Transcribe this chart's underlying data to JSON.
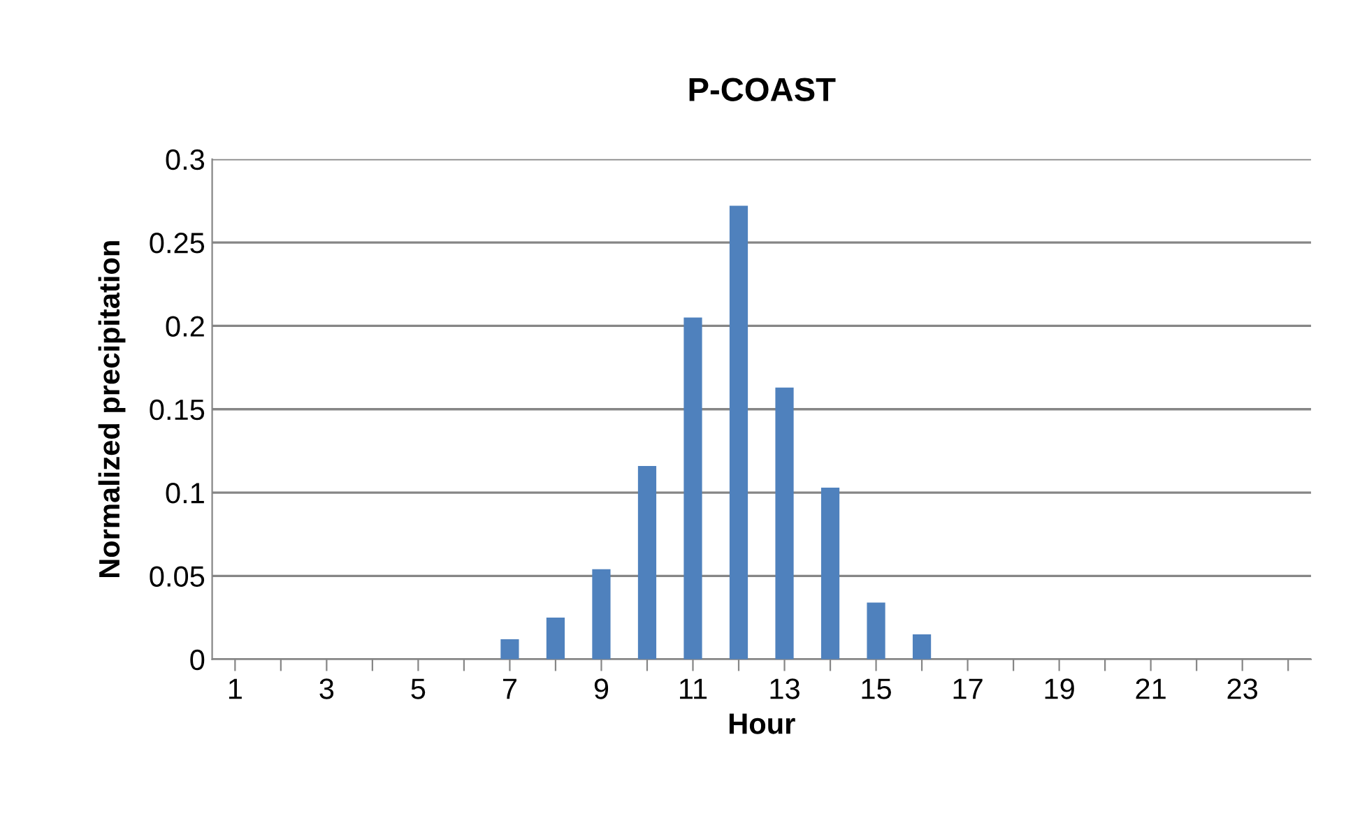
{
  "chart_data": {
    "type": "bar",
    "title": "P-COAST",
    "xlabel": "Hour",
    "ylabel": "Normalized precipitation",
    "categories": [
      "1",
      null,
      "3",
      null,
      "5",
      null,
      "7",
      null,
      "9",
      null,
      "11",
      null,
      "13",
      null,
      "15",
      null,
      "17",
      null,
      "19",
      null,
      "21",
      null,
      "23",
      null
    ],
    "values": [
      0,
      0,
      0,
      0,
      0,
      0,
      0.012,
      0.025,
      0.054,
      0.116,
      0.205,
      0.272,
      0.163,
      0.103,
      0.034,
      0.015,
      0,
      0,
      0,
      0,
      0,
      0,
      0,
      0
    ],
    "color": "#4f81bd",
    "ylim": [
      0,
      0.3
    ],
    "yticks": [
      0,
      0.05,
      0.1,
      0.15,
      0.2,
      0.25,
      0.3
    ],
    "grid": "y",
    "legend": false
  }
}
